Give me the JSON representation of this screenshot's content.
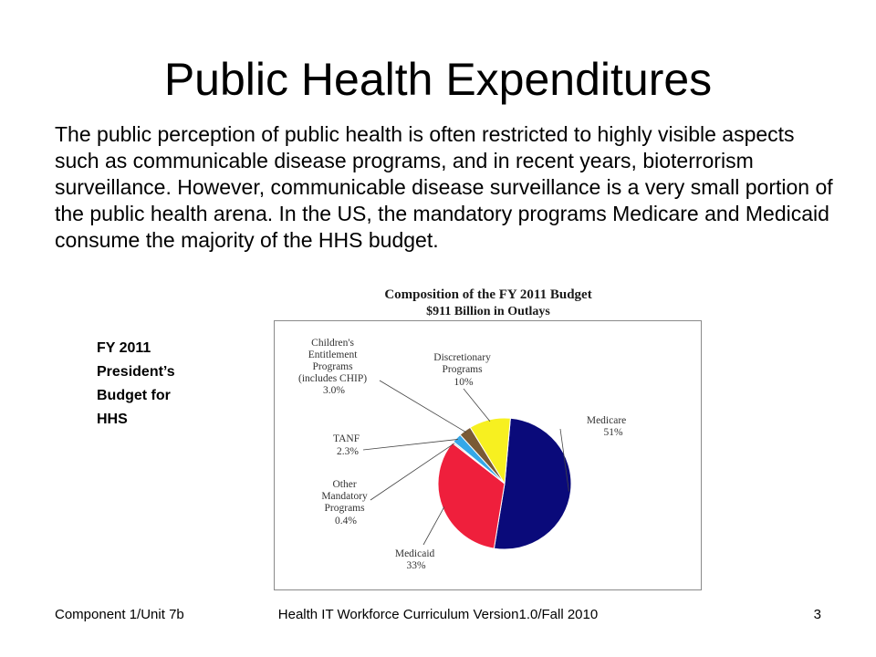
{
  "slide": {
    "title": "Public Health Expenditures",
    "body": "The public perception of public health is often restricted to highly visible aspects such as communicable disease programs, and in recent years, bioterrorism surveillance. However, communicable disease surveillance is a very small portion of the public health arena. In the US, the mandatory programs Medicare and Medicaid consume the majority of the HHS budget.",
    "side_label": [
      "FY 2011",
      "President’s",
      "Budget for",
      "HHS"
    ]
  },
  "footer": {
    "left": "Component 1/Unit 7b",
    "center": "Health IT Workforce Curriculum Version1.0/Fall 2010",
    "right": "3"
  },
  "chart_data": {
    "type": "pie",
    "title": "Composition of the FY 2011 Budget",
    "subtitle": "$911 Billion in Outlays",
    "slices": [
      {
        "label": "Medicare",
        "value": 51,
        "value_text": "51%",
        "color": "#0a0a7a"
      },
      {
        "label": "Medicaid",
        "value": 33,
        "value_text": "33%",
        "color": "#ef1f3c"
      },
      {
        "label": "Other Mandatory Programs",
        "value": 0.4,
        "value_text": "0.4%",
        "color": "#cfcfcf"
      },
      {
        "label": "TANF",
        "value": 2.3,
        "value_text": "2.3%",
        "color": "#35a8e8"
      },
      {
        "label": "Children's Entitlement Programs (includes CHIP)",
        "value": 3.0,
        "value_text": "3.0%",
        "color": "#7a5a35"
      },
      {
        "label": "Discretionary Programs",
        "value": 10,
        "value_text": "10%",
        "color": "#f7f020"
      }
    ]
  }
}
